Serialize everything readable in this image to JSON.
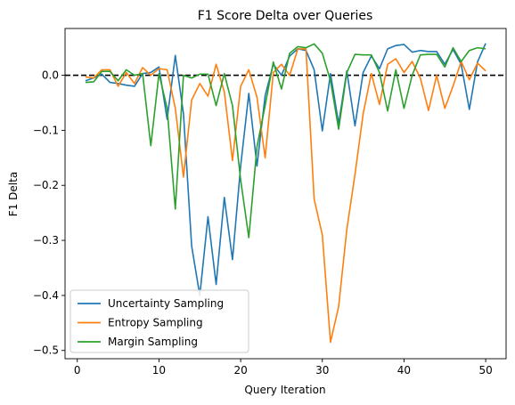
{
  "chart_data": {
    "type": "line",
    "title": "F1 Score Delta over Queries",
    "xlabel": "Query Iteration",
    "ylabel": "F1 Delta",
    "xlim": [
      -1.5,
      52.5
    ],
    "ylim": [
      -0.515,
      0.085
    ],
    "xticks": [
      0,
      10,
      20,
      30,
      40,
      50
    ],
    "yticks": [
      0.0,
      -0.1,
      -0.2,
      -0.3,
      -0.4,
      -0.5
    ],
    "ytick_labels": [
      "0.0",
      "−0.1",
      "−0.2",
      "−0.3",
      "−0.4",
      "−0.5"
    ],
    "grid": false,
    "legend_position": "lower-left",
    "reference_line": {
      "y": 0.0,
      "style": "dashed",
      "color": "#000000"
    },
    "x": [
      1,
      2,
      3,
      4,
      5,
      6,
      7,
      8,
      9,
      10,
      11,
      12,
      13,
      14,
      15,
      16,
      17,
      18,
      19,
      20,
      21,
      22,
      23,
      24,
      25,
      26,
      27,
      28,
      29,
      30,
      31,
      32,
      33,
      34,
      35,
      36,
      37,
      38,
      39,
      40,
      41,
      42,
      43,
      44,
      45,
      46,
      47,
      48,
      49,
      50
    ],
    "series": [
      {
        "name": "Uncertainty Sampling",
        "color": "#1f77b4",
        "values": [
          -0.01,
          -0.005,
          0.002,
          -0.013,
          -0.015,
          -0.018,
          -0.02,
          0.003,
          0.005,
          0.015,
          -0.08,
          0.036,
          -0.07,
          -0.31,
          -0.4,
          -0.257,
          -0.38,
          -0.222,
          -0.335,
          -0.165,
          -0.033,
          -0.165,
          -0.037,
          0.02,
          0.0,
          0.035,
          0.048,
          0.045,
          0.01,
          -0.101,
          0.003,
          -0.088,
          0.008,
          -0.092,
          0.005,
          0.035,
          0.012,
          0.048,
          0.054,
          0.056,
          0.042,
          0.045,
          0.043,
          0.043,
          0.02,
          0.047,
          0.02,
          -0.062,
          0.024,
          0.058
        ]
      },
      {
        "name": "Entropy Sampling",
        "color": "#ff7f0e",
        "values": [
          -0.003,
          -0.005,
          0.01,
          0.01,
          -0.02,
          0.005,
          -0.015,
          0.014,
          0.0,
          0.012,
          0.01,
          -0.06,
          -0.185,
          -0.045,
          -0.015,
          -0.038,
          0.02,
          -0.03,
          -0.155,
          -0.02,
          0.01,
          -0.04,
          -0.15,
          0.005,
          0.02,
          0.0,
          0.048,
          0.048,
          -0.225,
          -0.29,
          -0.485,
          -0.42,
          -0.28,
          -0.18,
          -0.07,
          0.003,
          -0.053,
          0.02,
          0.03,
          0.005,
          0.025,
          -0.005,
          -0.064,
          0.0,
          -0.06,
          -0.02,
          0.025,
          -0.008,
          0.022,
          0.008
        ]
      },
      {
        "name": "Margin Sampling",
        "color": "#2ca02c",
        "values": [
          -0.013,
          -0.012,
          0.007,
          0.007,
          -0.01,
          0.01,
          0.0,
          0.003,
          -0.128,
          0.003,
          -0.06,
          -0.243,
          0.0,
          -0.005,
          0.002,
          0.002,
          -0.055,
          0.003,
          -0.055,
          -0.19,
          -0.295,
          -0.13,
          -0.055,
          0.024,
          -0.025,
          0.04,
          0.052,
          0.05,
          0.057,
          0.04,
          -0.01,
          -0.098,
          0.005,
          0.038,
          0.037,
          0.037,
          0.005,
          -0.065,
          0.01,
          -0.06,
          0.0,
          0.037,
          0.038,
          0.038,
          0.015,
          0.05,
          0.025,
          0.045,
          0.05,
          0.048
        ]
      }
    ]
  }
}
